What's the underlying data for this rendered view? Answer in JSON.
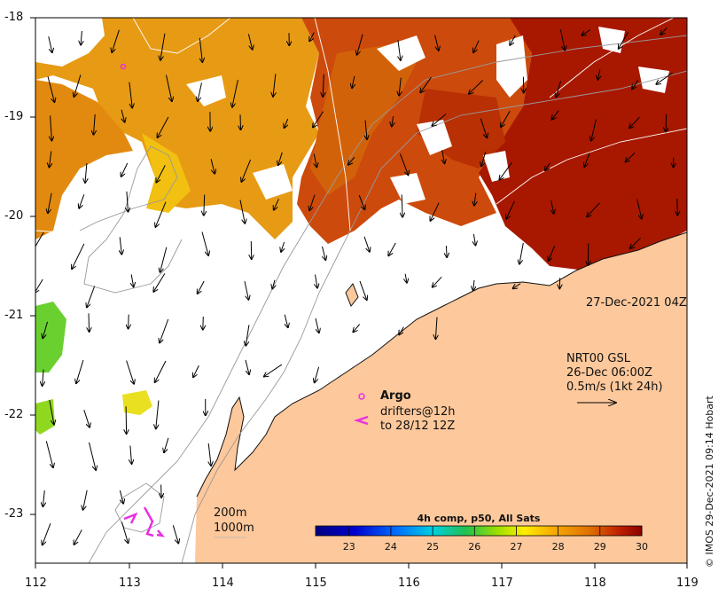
{
  "map": {
    "lon_ticks": [
      "112",
      "113",
      "114",
      "115",
      "116",
      "117",
      "118",
      "119"
    ],
    "lat_ticks": [
      "-18",
      "-19",
      "-20",
      "-21",
      "-22",
      "-23"
    ],
    "date_label": "27-Dec-2021 04Z",
    "current_source": "NRT00 GSL",
    "current_time": "26-Dec 06:00Z",
    "current_scale": "0.5m/s (1kt 24h)",
    "argo_label": "Argo",
    "drifters_label": "drifters@12h",
    "drifters_to": "to 28/12 12Z",
    "contour_200": "200m",
    "contour_1000": "1000m",
    "credit": "© IMOS 29-Dec-2021 09:14 Hobart"
  },
  "colorbar": {
    "title": "4h comp, p50, All Sats",
    "labels": [
      "23",
      "24",
      "25",
      "26",
      "27",
      "28",
      "29",
      "30"
    ],
    "min": 22.2,
    "max": 30.0
  },
  "colors": {
    "land": "#fdc89b",
    "argo_marker": "#e830e0",
    "drifter": "#e830e0"
  }
}
